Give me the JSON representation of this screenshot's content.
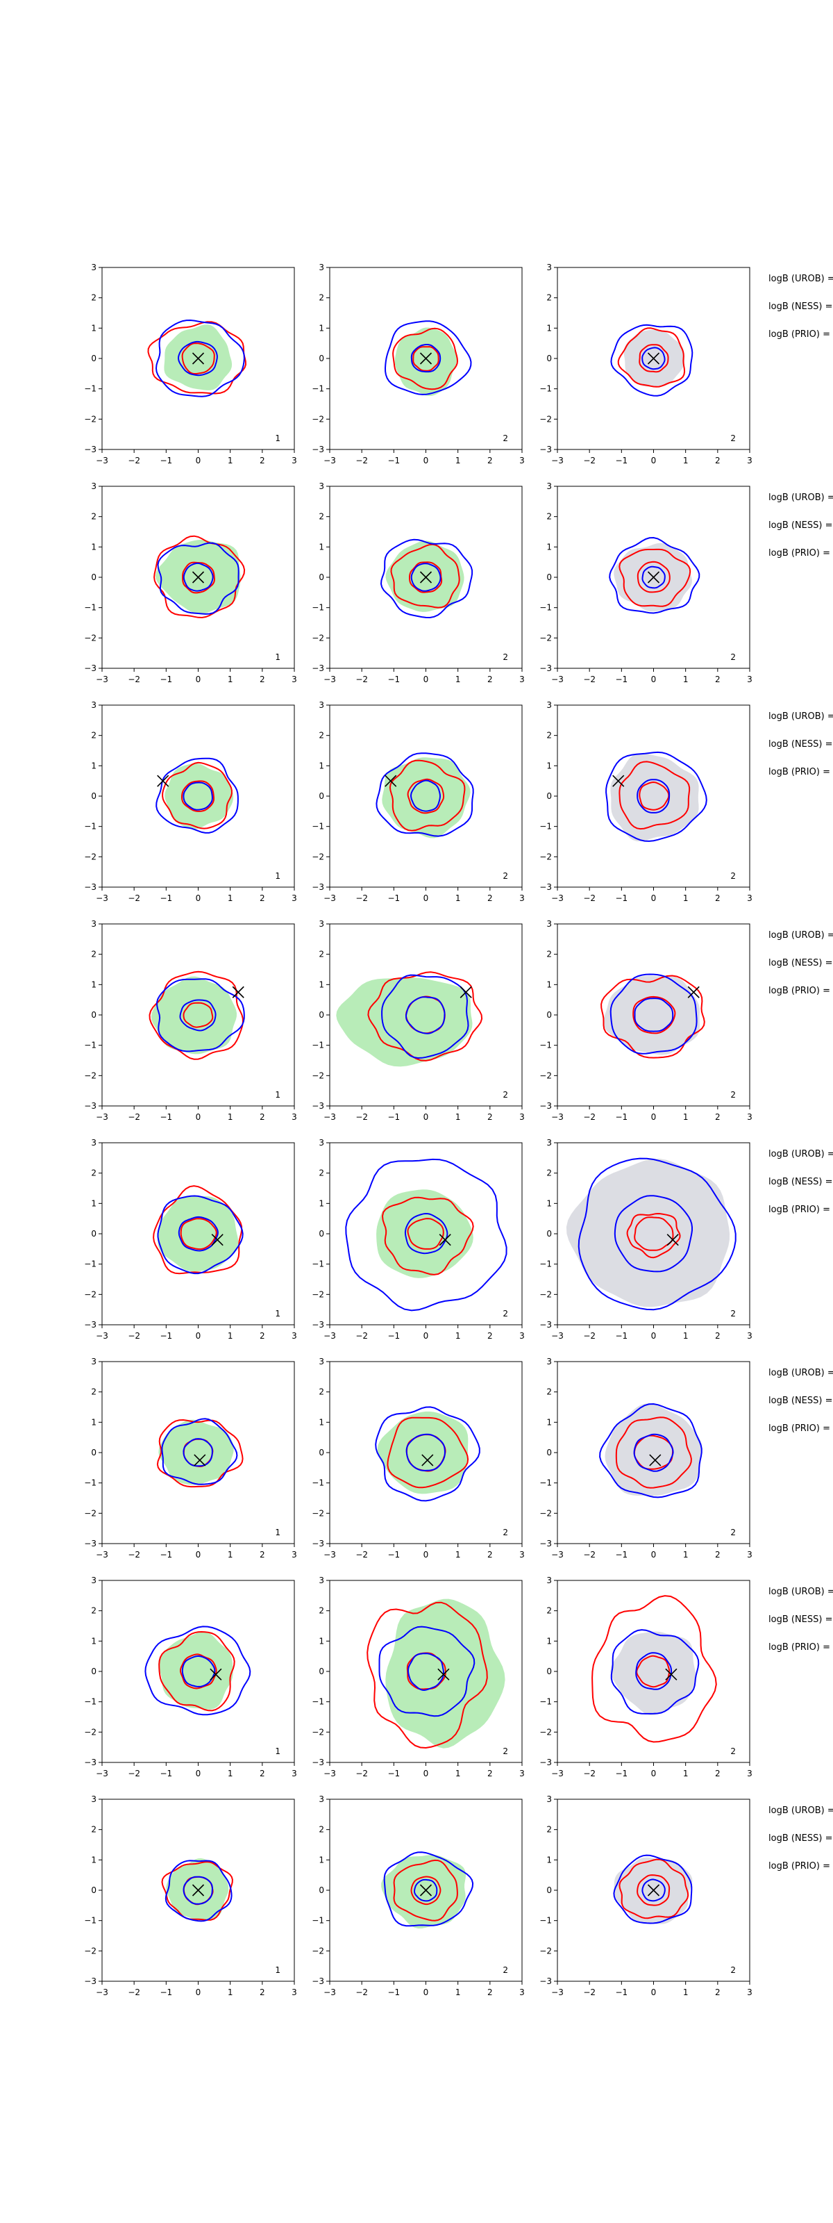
{
  "figure": {
    "colors": {
      "blue": "#0000ff",
      "red": "#ff0000",
      "green_fill": "#b8ecb8",
      "gray_fill": "#dcdde3",
      "marker": "#000000",
      "axis": "#000000"
    },
    "tick_values": [
      -3,
      -2,
      -1,
      0,
      1,
      2,
      3
    ],
    "tick_labels": [
      "−3",
      "−2",
      "−1",
      "0",
      "1",
      "2",
      "3"
    ],
    "side_labels": [
      "logB (UROB) =",
      "logB (NESS) =",
      "logB (PRIO) ="
    ],
    "column_fills": [
      "green",
      "green",
      "gray"
    ],
    "rows": [
      {
        "corner_labels": [
          "1",
          "2",
          "2"
        ],
        "marker": [
          0.0,
          0.0
        ],
        "panels": [
          {
            "fill": [
              1.05,
              1.05,
              0.0,
              0.0
            ],
            "blue": [
              [
                0.6,
                0.55
              ],
              [
                1.35,
                1.25
              ]
            ],
            "red": [
              [
                0.5,
                0.5
              ],
              [
                1.5,
                1.15
              ]
            ]
          },
          {
            "fill": [
              0.95,
              1.1,
              0.0,
              -0.1
            ],
            "blue": [
              [
                0.45,
                0.45
              ],
              [
                1.3,
                1.2
              ]
            ],
            "red": [
              [
                0.4,
                0.4
              ],
              [
                1.0,
                0.95
              ]
            ]
          },
          {
            "fill": [
              0.95,
              0.95,
              0.0,
              0.0
            ],
            "blue": [
              [
                0.35,
                0.35
              ],
              [
                1.25,
                1.15
              ]
            ],
            "red": [
              [
                0.45,
                0.45
              ],
              [
                1.0,
                0.95
              ]
            ]
          }
        ]
      },
      {
        "corner_labels": [
          "1",
          "2",
          "2"
        ],
        "marker": [
          0.0,
          0.0
        ],
        "panels": [
          {
            "fill": [
              1.3,
              1.2,
              0.1,
              0.05
            ],
            "blue": [
              [
                0.45,
                0.45
              ],
              [
                1.25,
                1.15
              ]
            ],
            "red": [
              [
                0.5,
                0.5
              ],
              [
                1.35,
                1.3
              ]
            ]
          },
          {
            "fill": [
              1.2,
              1.15,
              0.0,
              0.0
            ],
            "blue": [
              [
                0.45,
                0.45
              ],
              [
                1.4,
                1.25
              ]
            ],
            "red": [
              [
                0.5,
                0.5
              ],
              [
                1.05,
                1.0
              ]
            ]
          },
          {
            "fill": [
              1.2,
              1.1,
              0.0,
              0.0
            ],
            "blue": [
              [
                0.35,
                0.35
              ],
              [
                1.35,
                1.2
              ]
            ],
            "red": [
              [
                0.5,
                0.5
              ],
              [
                1.05,
                0.95
              ]
            ]
          }
        ]
      },
      {
        "corner_labels": [
          "1",
          "2",
          "2"
        ],
        "marker": [
          -1.1,
          0.5
        ],
        "panels": [
          {
            "fill": [
              1.05,
              1.05,
              0.0,
              0.0
            ],
            "blue": [
              [
                0.45,
                0.45
              ],
              [
                1.25,
                1.2
              ]
            ],
            "red": [
              [
                0.5,
                0.5
              ],
              [
                1.05,
                1.05
              ]
            ]
          },
          {
            "fill": [
              1.35,
              1.3,
              0.0,
              0.0
            ],
            "blue": [
              [
                0.45,
                0.5
              ],
              [
                1.5,
                1.35
              ]
            ],
            "red": [
              [
                0.55,
                0.55
              ],
              [
                1.15,
                1.1
              ]
            ]
          },
          {
            "fill": [
              1.4,
              1.4,
              0.0,
              -0.05
            ],
            "blue": [
              [
                0.5,
                0.55
              ],
              [
                1.55,
                1.45
              ]
            ],
            "red": [
              [
                0.45,
                0.45
              ],
              [
                1.1,
                1.05
              ]
            ]
          }
        ]
      },
      {
        "corner_labels": [
          "1",
          "2",
          "2"
        ],
        "marker": [
          1.25,
          0.75
        ],
        "panels": [
          {
            "fill": [
              1.3,
              1.25,
              -0.1,
              -0.05
            ],
            "blue": [
              [
                0.55,
                0.5
              ],
              [
                1.35,
                1.2
              ]
            ],
            "red": [
              [
                0.45,
                0.4
              ],
              [
                1.4,
                1.4
              ]
            ]
          },
          {
            "fill": [
              2.1,
              1.45,
              -0.6,
              -0.15
            ],
            "blue": [
              [
                0.6,
                0.6
              ],
              [
                1.35,
                1.35
              ]
            ],
            "red": [
              [
                0.6,
                0.6
              ],
              [
                1.7,
                1.4
              ]
            ]
          },
          {
            "fill": [
              1.5,
              1.3,
              0.0,
              0.0
            ],
            "blue": [
              [
                0.6,
                0.55
              ],
              [
                1.35,
                1.3
              ]
            ],
            "red": [
              [
                0.65,
                0.6
              ],
              [
                1.6,
                1.3
              ]
            ]
          }
        ]
      },
      {
        "corner_labels": [
          "1",
          "2",
          "2"
        ],
        "marker": [
          0.6,
          -0.2
        ],
        "panels": [
          {
            "fill": [
              1.25,
              1.25,
              0.0,
              0.0
            ],
            "blue": [
              [
                0.6,
                0.55
              ],
              [
                1.3,
                1.25
              ]
            ],
            "red": [
              [
                0.55,
                0.5
              ],
              [
                1.35,
                1.4
              ]
            ]
          },
          {
            "fill": [
              1.5,
              1.45,
              -0.1,
              0.0
            ],
            "blue": [
              [
                0.65,
                0.65
              ],
              [
                2.45,
                2.45
              ]
            ],
            "red": [
              [
                0.55,
                0.5
              ],
              [
                1.35,
                1.25
              ]
            ]
          },
          {
            "fill": [
              2.5,
              2.4,
              -0.05,
              0.0
            ],
            "blue": [
              [
                1.2,
                1.25
              ],
              [
                2.4,
                2.45
              ]
            ],
            "red": [
              [
                0.6,
                0.55
              ],
              [
                0.8,
                0.7
              ]
            ]
          }
        ]
      },
      {
        "corner_labels": [
          "1",
          "2",
          "2"
        ],
        "marker": [
          0.05,
          -0.25
        ],
        "panels": [
          {
            "fill": [
              1.15,
              1.05,
              -0.05,
              0.0
            ],
            "blue": [
              [
                0.45,
                0.45
              ],
              [
                1.15,
                1.05
              ]
            ],
            "red": [
              [
                0.45,
                0.45
              ],
              [
                1.3,
                1.1
              ]
            ]
          },
          {
            "fill": [
              1.4,
              1.35,
              0.0,
              0.0
            ],
            "blue": [
              [
                0.6,
                0.6
              ],
              [
                1.55,
                1.5
              ]
            ],
            "red": [
              [
                0.6,
                0.6
              ],
              [
                1.2,
                1.15
              ]
            ]
          },
          {
            "fill": [
              1.5,
              1.5,
              0.0,
              0.0
            ],
            "blue": [
              [
                0.6,
                0.6
              ],
              [
                1.55,
                1.5
              ]
            ],
            "red": [
              [
                0.6,
                0.55
              ],
              [
                1.15,
                1.15
              ]
            ]
          }
        ]
      },
      {
        "corner_labels": [
          "1",
          "2",
          "2"
        ],
        "marker": [
          0.55,
          -0.1
        ],
        "panels": [
          {
            "fill": [
              1.15,
              1.25,
              -0.05,
              0.0
            ],
            "blue": [
              [
                0.5,
                0.5
              ],
              [
                1.6,
                1.4
              ]
            ],
            "red": [
              [
                0.55,
                0.55
              ],
              [
                1.15,
                1.25
              ]
            ]
          },
          {
            "fill": [
              1.8,
              2.4,
              0.55,
              -0.05
            ],
            "blue": [
              [
                0.55,
                0.6
              ],
              [
                1.45,
                1.45
              ]
            ],
            "red": [
              [
                0.6,
                0.6
              ],
              [
                1.8,
                2.3
              ]
            ]
          },
          {
            "fill": [
              1.3,
              1.35,
              0.05,
              0.0
            ],
            "blue": [
              [
                0.55,
                0.6
              ],
              [
                1.35,
                1.35
              ]
            ],
            "red": [
              [
                0.5,
                0.5
              ],
              [
                1.85,
                2.3
              ]
            ]
          }
        ]
      },
      {
        "corner_labels": [
          "1",
          "2",
          "2"
        ],
        "marker": [
          0.0,
          0.0
        ],
        "panels": [
          {
            "fill": [
              0.95,
              1.0,
              0.0,
              0.0
            ],
            "blue": [
              [
                0.45,
                0.45
              ],
              [
                1.0,
                1.0
              ]
            ],
            "red": [
              [
                0.45,
                0.45
              ],
              [
                1.05,
                0.95
              ]
            ]
          },
          {
            "fill": [
              1.3,
              1.2,
              0.0,
              0.0
            ],
            "blue": [
              [
                0.35,
                0.35
              ],
              [
                1.35,
                1.2
              ]
            ],
            "red": [
              [
                0.45,
                0.45
              ],
              [
                1.0,
                0.95
              ]
            ]
          },
          {
            "fill": [
              1.2,
              1.1,
              0.0,
              0.0
            ],
            "blue": [
              [
                0.35,
                0.35
              ],
              [
                1.2,
                1.1
              ]
            ],
            "red": [
              [
                0.5,
                0.5
              ],
              [
                1.05,
                0.95
              ]
            ]
          }
        ]
      }
    ]
  },
  "chart_data": {
    "type": "contour-grid",
    "layout": "8 rows x 3 columns of 2D density contour panels",
    "xlim": [
      -3,
      3
    ],
    "ylim": [
      -3,
      3
    ],
    "xticks": [
      -3,
      -2,
      -1,
      0,
      1,
      2,
      3
    ],
    "yticks": [
      -3,
      -2,
      -1,
      0,
      1,
      2,
      3
    ],
    "series": [
      {
        "name": "blue contours (inner and outer level)",
        "color": "#0000ff"
      },
      {
        "name": "red contours (inner and outer level)",
        "color": "#ff0000"
      },
      {
        "name": "filled density region (green in columns 1-2, gray in column 3)"
      },
      {
        "name": "reference point marker",
        "symbol": "x"
      }
    ],
    "row_side_labels": [
      "logB (UROB) =",
      "logB (NESS) =",
      "logB (PRIO) ="
    ],
    "reference_points": [
      [
        0.0,
        0.0
      ],
      [
        0.0,
        0.0
      ],
      [
        -1.1,
        0.5
      ],
      [
        1.25,
        0.75
      ],
      [
        0.6,
        -0.2
      ],
      [
        0.05,
        -0.25
      ],
      [
        0.55,
        -0.1
      ],
      [
        0.0,
        0.0
      ]
    ]
  }
}
